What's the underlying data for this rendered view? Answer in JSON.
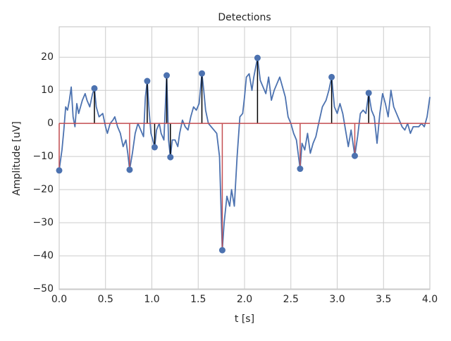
{
  "chart_data": {
    "type": "stem",
    "title": "Detections",
    "xlabel": "t [s]",
    "ylabel": "Amplitude [uV]",
    "xlim": [
      0,
      4
    ],
    "ylim": [
      -50.2,
      29.2
    ],
    "xticks": [
      {
        "value": 0,
        "label": "0.0"
      },
      0.5,
      {
        "value": 1,
        "label": "1.0"
      },
      1.5,
      {
        "value": 2,
        "label": "2.0"
      },
      2.5,
      {
        "value": 3,
        "label": "3.0"
      },
      3.5,
      {
        "value": 4,
        "label": "4.0"
      }
    ],
    "yticks": [
      {
        "value": -50,
        "label": "−50"
      },
      {
        "value": -40,
        "label": "−40"
      },
      {
        "value": -30,
        "label": "−30"
      },
      {
        "value": -20,
        "label": "−20"
      },
      {
        "value": -10,
        "label": "−10"
      },
      0,
      10,
      20
    ],
    "grid": true,
    "baseline_color": "#c44e52",
    "signal": {
      "color": "#4c72b0",
      "x": [
        0.0,
        0.03,
        0.05,
        0.07,
        0.09,
        0.11,
        0.13,
        0.15,
        0.17,
        0.19,
        0.21,
        0.23,
        0.25,
        0.28,
        0.3,
        0.33,
        0.36,
        0.38,
        0.4,
        0.43,
        0.47,
        0.5,
        0.52,
        0.55,
        0.58,
        0.6,
        0.63,
        0.66,
        0.69,
        0.72,
        0.74,
        0.76,
        0.79,
        0.82,
        0.85,
        0.88,
        0.91,
        0.93,
        0.95,
        0.97,
        0.99,
        1.01,
        1.03,
        1.05,
        1.08,
        1.1,
        1.13,
        1.16,
        1.18,
        1.2,
        1.22,
        1.25,
        1.28,
        1.3,
        1.33,
        1.36,
        1.39,
        1.42,
        1.45,
        1.48,
        1.51,
        1.54,
        1.56,
        1.58,
        1.61,
        1.64,
        1.67,
        1.7,
        1.73,
        1.76,
        1.78,
        1.81,
        1.84,
        1.86,
        1.89,
        1.92,
        1.95,
        1.98,
        2.0,
        2.02,
        2.05,
        2.08,
        2.1,
        2.14,
        2.17,
        2.2,
        2.23,
        2.26,
        2.29,
        2.32,
        2.35,
        2.38,
        2.41,
        2.44,
        2.47,
        2.5,
        2.53,
        2.56,
        2.6,
        2.62,
        2.65,
        2.68,
        2.71,
        2.74,
        2.77,
        2.8,
        2.84,
        2.88,
        2.91,
        2.94,
        2.97,
        3.0,
        3.03,
        3.06,
        3.09,
        3.12,
        3.15,
        3.19,
        3.22,
        3.25,
        3.28,
        3.31,
        3.34,
        3.37,
        3.4,
        3.43,
        3.46,
        3.49,
        3.52,
        3.55,
        3.58,
        3.61,
        3.64,
        3.67,
        3.7,
        3.73,
        3.76,
        3.79,
        3.82,
        3.85,
        3.88,
        3.91,
        3.94,
        3.97,
        4.0
      ],
      "values": [
        -14,
        -8,
        -2,
        5,
        4,
        7,
        11,
        2,
        -1,
        6,
        3,
        5,
        7,
        9,
        7,
        5,
        9,
        10.6,
        5,
        2,
        3,
        -1,
        -3,
        0,
        1,
        2,
        -1,
        -3,
        -7,
        -5,
        -9,
        -14,
        -9,
        -3,
        0,
        -2,
        -4,
        8,
        12.8,
        4,
        -3,
        -5,
        -7.2,
        -2,
        0,
        -3,
        -5,
        14.5,
        -5,
        -10.2,
        -5,
        -5,
        -7,
        -3,
        1,
        -1,
        -2,
        2,
        5,
        4,
        6,
        15.1,
        10,
        4,
        0,
        -1,
        -2,
        -3,
        -10,
        -38.3,
        -30,
        -22,
        -25,
        -20,
        -25,
        -10,
        2,
        3,
        8,
        14,
        15,
        10,
        14,
        19.8,
        13,
        11,
        9,
        14,
        7,
        10,
        12,
        14,
        11,
        8,
        2,
        0,
        -3,
        -5,
        -13.7,
        -6,
        -8,
        -3,
        -9,
        -6,
        -4,
        0,
        5,
        7,
        10,
        14,
        5,
        3,
        6,
        3,
        -2,
        -7,
        -2,
        -9.8,
        -4,
        3,
        4,
        3,
        9.2,
        4,
        2,
        -6,
        3,
        9,
        6,
        2,
        10,
        5,
        3,
        1,
        -1,
        -2,
        0,
        -3,
        -1,
        -1,
        -1,
        0,
        -1,
        2,
        8
      ]
    },
    "detections": {
      "marker_color": "#4c72b0",
      "x": [
        0.0,
        0.38,
        0.76,
        0.95,
        1.03,
        1.16,
        1.2,
        1.54,
        1.76,
        2.14,
        2.6,
        2.94,
        3.19,
        3.34
      ],
      "values": [
        -14.2,
        10.6,
        -14,
        12.8,
        -7.2,
        14.5,
        -10.2,
        15.1,
        -38.3,
        19.8,
        -13.7,
        14.0,
        -9.8,
        9.2
      ],
      "stem_colors": [
        "#c44e52",
        "#000000",
        "#c44e52",
        "#000000",
        "#000000",
        "#000000",
        "#000000",
        "#000000",
        "#c44e52",
        "#000000",
        "#c44e52",
        "#000000",
        "#c44e52",
        "#000000"
      ]
    }
  }
}
